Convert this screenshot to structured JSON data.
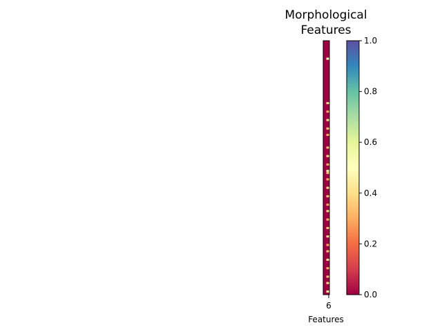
{
  "chart_data": {
    "type": "heatmap",
    "title_lines": [
      "Morphological",
      "Features"
    ],
    "xlabel": "Features",
    "ylabel": "",
    "x_ticks": [
      "6"
    ],
    "columns": 2,
    "rows": 120,
    "value_range": [
      0,
      1
    ],
    "cells": [
      {
        "row": 8,
        "col": 1,
        "value": 0.5
      },
      {
        "row": 29,
        "col": 1,
        "value": 0.4
      },
      {
        "row": 33,
        "col": 1,
        "value": 0.3
      },
      {
        "row": 37,
        "col": 1,
        "value": 0.4
      },
      {
        "row": 41,
        "col": 1,
        "value": 0.35
      },
      {
        "row": 44,
        "col": 1,
        "value": 0.3
      },
      {
        "row": 50,
        "col": 1,
        "value": 0.35
      },
      {
        "row": 54,
        "col": 1,
        "value": 0.4
      },
      {
        "row": 58,
        "col": 1,
        "value": 0.3
      },
      {
        "row": 61,
        "col": 1,
        "value": 0.45
      },
      {
        "row": 62,
        "col": 1,
        "value": 0.35
      },
      {
        "row": 65,
        "col": 1,
        "value": 0.3
      },
      {
        "row": 69,
        "col": 1,
        "value": 0.4
      },
      {
        "row": 73,
        "col": 1,
        "value": 0.35
      },
      {
        "row": 77,
        "col": 1,
        "value": 0.3
      },
      {
        "row": 80,
        "col": 1,
        "value": 0.4
      },
      {
        "row": 84,
        "col": 1,
        "value": 0.3
      },
      {
        "row": 88,
        "col": 1,
        "value": 0.35
      },
      {
        "row": 92,
        "col": 1,
        "value": 0.4
      },
      {
        "row": 96,
        "col": 1,
        "value": 0.3
      },
      {
        "row": 99,
        "col": 1,
        "value": 0.35
      },
      {
        "row": 103,
        "col": 1,
        "value": 0.4
      },
      {
        "row": 107,
        "col": 1,
        "value": 0.3
      },
      {
        "row": 111,
        "col": 1,
        "value": 0.35
      },
      {
        "row": 114,
        "col": 1,
        "value": 0.4
      },
      {
        "row": 118,
        "col": 1,
        "value": 0.45
      }
    ],
    "colorbar": {
      "ticks": [
        0.0,
        0.2,
        0.4,
        0.6,
        0.8,
        1.0
      ],
      "tick_labels": [
        "0.0",
        "0.2",
        "0.4",
        "0.6",
        "0.8",
        "1.0"
      ]
    },
    "colormap": "Spectral",
    "colormap_stops": [
      "#9e0142",
      "#d53e4f",
      "#f46d43",
      "#fdae61",
      "#fee08b",
      "#ffffbf",
      "#e6f598",
      "#abdda4",
      "#66c2a5",
      "#3288bd",
      "#5e4fa2"
    ]
  }
}
